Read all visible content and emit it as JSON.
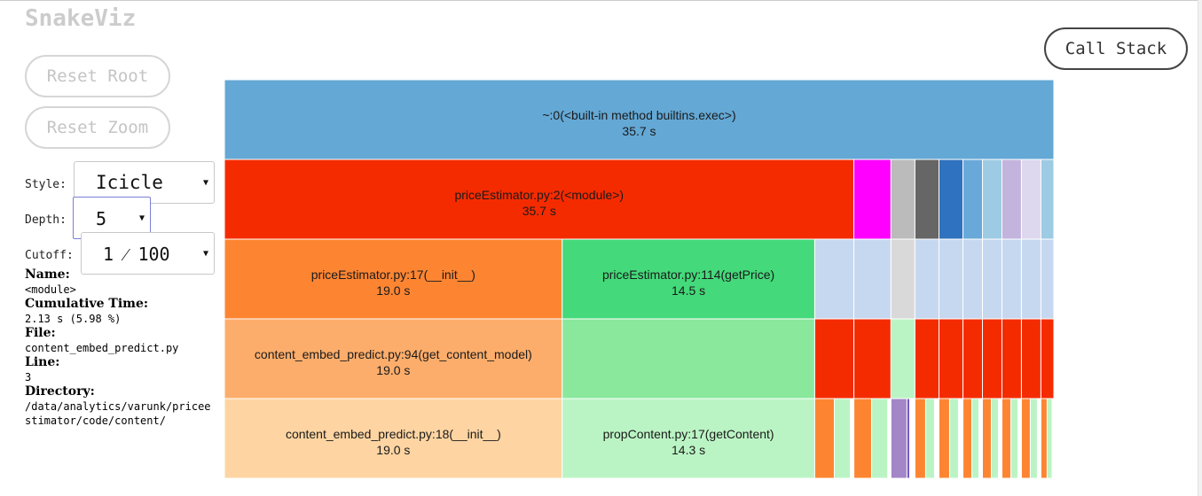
{
  "app": {
    "title": "SnakeViz"
  },
  "controls": {
    "reset_root": "Reset Root",
    "reset_zoom": "Reset Zoom",
    "call_stack": "Call Stack",
    "style_label": "Style:",
    "style_value": "Icicle",
    "depth_label": "Depth:",
    "depth_value": "5",
    "cutoff_label": "Cutoff:",
    "cutoff_value": "1 ⁄ 100"
  },
  "info": {
    "name_label": "Name:",
    "name_value": "<module>",
    "cumtime_label": "Cumulative Time:",
    "cumtime_value": "2.13 s (5.98 %)",
    "file_label": "File:",
    "file_value": "content_embed_predict.py",
    "line_label": "Line:",
    "line_value": "3",
    "dir_label": "Directory:",
    "dir_value": "/data/analytics/varunk/priceestimator/code/content/"
  },
  "icicle": {
    "cells": [
      {
        "name": "icicle-cell-builtins-exec",
        "row": 0,
        "start": 0.0,
        "end": 1.0,
        "color": "#64a8d5",
        "label": "~:0(<built-in method builtins.exec>)",
        "time": "35.7 s"
      },
      {
        "name": "icicle-cell-priceestimator-module",
        "row": 1,
        "start": 0.0,
        "end": 0.7589,
        "color": "#f52b00",
        "label": "priceEstimator.py:2(<module>)",
        "time": "35.7 s"
      },
      {
        "name": "icicle-cell",
        "row": 1,
        "start": 0.7589,
        "end": 0.8036,
        "color": "#ff00ff"
      },
      {
        "name": "icicle-cell",
        "row": 1,
        "start": 0.8036,
        "end": 0.8325,
        "color": "#bbbbbb"
      },
      {
        "name": "icicle-cell",
        "row": 1,
        "start": 0.8325,
        "end": 0.8615,
        "color": "#666666"
      },
      {
        "name": "icicle-cell",
        "row": 1,
        "start": 0.8615,
        "end": 0.8904,
        "color": "#2f72bf"
      },
      {
        "name": "icicle-cell",
        "row": 1,
        "start": 0.8904,
        "end": 0.9139,
        "color": "#69a9d9"
      },
      {
        "name": "icicle-cell",
        "row": 1,
        "start": 0.9139,
        "end": 0.9374,
        "color": "#9dcbe3"
      },
      {
        "name": "icicle-cell",
        "row": 1,
        "start": 0.9374,
        "end": 0.9609,
        "color": "#c2b4dd"
      },
      {
        "name": "icicle-cell",
        "row": 1,
        "start": 0.9609,
        "end": 0.9844,
        "color": "#ddd8ee"
      },
      {
        "name": "icicle-cell",
        "row": 1,
        "start": 0.9844,
        "end": 1.0,
        "color": "#9dcbe3"
      },
      {
        "name": "icicle-cell-priceestimator-init",
        "row": 2,
        "start": 0.0,
        "end": 0.4072,
        "color": "#fd8532",
        "label": "priceEstimator.py:17(__init__)",
        "time": "19.0 s"
      },
      {
        "name": "icicle-cell-priceestimator-getprice",
        "row": 2,
        "start": 0.4072,
        "end": 0.7117,
        "color": "#44d97a",
        "label": "priceEstimator.py:114(getPrice)",
        "time": "14.5 s"
      },
      {
        "name": "icicle-cell",
        "row": 2,
        "start": 0.7117,
        "end": 0.7589,
        "color": "#c6d8f0"
      },
      {
        "name": "icicle-cell",
        "row": 2,
        "start": 0.7589,
        "end": 0.8036,
        "color": "#c6d8f0"
      },
      {
        "name": "icicle-cell",
        "row": 2,
        "start": 0.8036,
        "end": 0.8325,
        "color": "#d9d9d9"
      },
      {
        "name": "icicle-cell",
        "row": 2,
        "start": 0.8325,
        "end": 0.8615,
        "color": "#c6d8f0"
      },
      {
        "name": "icicle-cell",
        "row": 2,
        "start": 0.8615,
        "end": 0.8904,
        "color": "#c6d8f0"
      },
      {
        "name": "icicle-cell",
        "row": 2,
        "start": 0.8904,
        "end": 0.9139,
        "color": "#c6d8f0"
      },
      {
        "name": "icicle-cell",
        "row": 2,
        "start": 0.9139,
        "end": 0.9374,
        "color": "#c6d8f0"
      },
      {
        "name": "icicle-cell",
        "row": 2,
        "start": 0.9374,
        "end": 0.9609,
        "color": "#c6d8f0"
      },
      {
        "name": "icicle-cell",
        "row": 2,
        "start": 0.9609,
        "end": 0.9844,
        "color": "#c6d8f0"
      },
      {
        "name": "icicle-cell",
        "row": 2,
        "start": 0.9844,
        "end": 1.0,
        "color": "#c6d8f0"
      },
      {
        "name": "icicle-cell-get-content-model",
        "row": 3,
        "start": 0.0,
        "end": 0.4072,
        "color": "#fdad6b",
        "label": "content_embed_predict.py:94(get_content_model)",
        "time": "19.0 s"
      },
      {
        "name": "icicle-cell",
        "row": 3,
        "start": 0.4072,
        "end": 0.7117,
        "color": "#8ae89c"
      },
      {
        "name": "icicle-cell",
        "row": 3,
        "start": 0.7117,
        "end": 0.7589,
        "color": "#f52b00"
      },
      {
        "name": "icicle-cell",
        "row": 3,
        "start": 0.7589,
        "end": 0.8036,
        "color": "#f52b00"
      },
      {
        "name": "icicle-cell",
        "row": 3,
        "start": 0.8036,
        "end": 0.8325,
        "color": "#bbf4c4"
      },
      {
        "name": "icicle-cell",
        "row": 3,
        "start": 0.8325,
        "end": 0.8615,
        "color": "#f52b00"
      },
      {
        "name": "icicle-cell",
        "row": 3,
        "start": 0.8615,
        "end": 0.8904,
        "color": "#f52b00"
      },
      {
        "name": "icicle-cell",
        "row": 3,
        "start": 0.8904,
        "end": 0.9139,
        "color": "#f52b00"
      },
      {
        "name": "icicle-cell",
        "row": 3,
        "start": 0.9139,
        "end": 0.9374,
        "color": "#f52b00"
      },
      {
        "name": "icicle-cell",
        "row": 3,
        "start": 0.9374,
        "end": 0.9609,
        "color": "#f52b00"
      },
      {
        "name": "icicle-cell",
        "row": 3,
        "start": 0.9609,
        "end": 0.9844,
        "color": "#f52b00"
      },
      {
        "name": "icicle-cell",
        "row": 3,
        "start": 0.9844,
        "end": 1.0,
        "color": "#f52b00"
      },
      {
        "name": "icicle-cell-content-embed-init",
        "row": 4,
        "start": 0.0,
        "end": 0.4072,
        "color": "#fdd4a2",
        "label": "content_embed_predict.py:18(__init__)",
        "time": "19.0 s"
      },
      {
        "name": "icicle-cell-propcontent-getcontent",
        "row": 4,
        "start": 0.4072,
        "end": 0.7117,
        "color": "#bbf4c4",
        "label": "propContent.py:17(getContent)",
        "time": "14.3 s"
      },
      {
        "name": "icicle-cell",
        "row": 4,
        "start": 0.7117,
        "end": 0.7353,
        "color": "#fd8532"
      },
      {
        "name": "icicle-cell",
        "row": 4,
        "start": 0.7353,
        "end": 0.7546,
        "color": "#bbf4c4"
      },
      {
        "name": "icicle-cell",
        "row": 4,
        "start": 0.7589,
        "end": 0.7803,
        "color": "#fd8532"
      },
      {
        "name": "icicle-cell",
        "row": 4,
        "start": 0.7803,
        "end": 0.7996,
        "color": "#bbf4c4"
      },
      {
        "name": "icicle-cell",
        "row": 4,
        "start": 0.8036,
        "end": 0.8229,
        "color": "#a286c7"
      },
      {
        "name": "icicle-cell",
        "row": 4,
        "start": 0.8229,
        "end": 0.8261,
        "color": "#6a4fbf"
      },
      {
        "name": "icicle-cell",
        "row": 4,
        "start": 0.8325,
        "end": 0.8454,
        "color": "#fd8532"
      },
      {
        "name": "icicle-cell",
        "row": 4,
        "start": 0.8454,
        "end": 0.8561,
        "color": "#bbf4c4"
      },
      {
        "name": "icicle-cell",
        "row": 4,
        "start": 0.8615,
        "end": 0.8743,
        "color": "#fd8532"
      },
      {
        "name": "icicle-cell",
        "row": 4,
        "start": 0.8743,
        "end": 0.885,
        "color": "#bbf4c4"
      },
      {
        "name": "icicle-cell",
        "row": 4,
        "start": 0.8904,
        "end": 0.9011,
        "color": "#fd8532"
      },
      {
        "name": "icicle-cell",
        "row": 4,
        "start": 0.9011,
        "end": 0.9096,
        "color": "#bbf4c4"
      },
      {
        "name": "icicle-cell",
        "row": 4,
        "start": 0.9139,
        "end": 0.9246,
        "color": "#fd8532"
      },
      {
        "name": "icicle-cell",
        "row": 4,
        "start": 0.9246,
        "end": 0.9331,
        "color": "#bbf4c4"
      },
      {
        "name": "icicle-cell",
        "row": 4,
        "start": 0.9374,
        "end": 0.9481,
        "color": "#fd8532"
      },
      {
        "name": "icicle-cell",
        "row": 4,
        "start": 0.9481,
        "end": 0.9566,
        "color": "#bbf4c4"
      },
      {
        "name": "icicle-cell",
        "row": 4,
        "start": 0.9609,
        "end": 0.9716,
        "color": "#fd8532"
      },
      {
        "name": "icicle-cell",
        "row": 4,
        "start": 0.9716,
        "end": 0.9801,
        "color": "#bbf4c4"
      },
      {
        "name": "icicle-cell",
        "row": 4,
        "start": 0.9844,
        "end": 0.9919,
        "color": "#fd8532"
      },
      {
        "name": "icicle-cell",
        "row": 4,
        "start": 0.9919,
        "end": 0.9979,
        "color": "#bbf4c4"
      }
    ]
  }
}
